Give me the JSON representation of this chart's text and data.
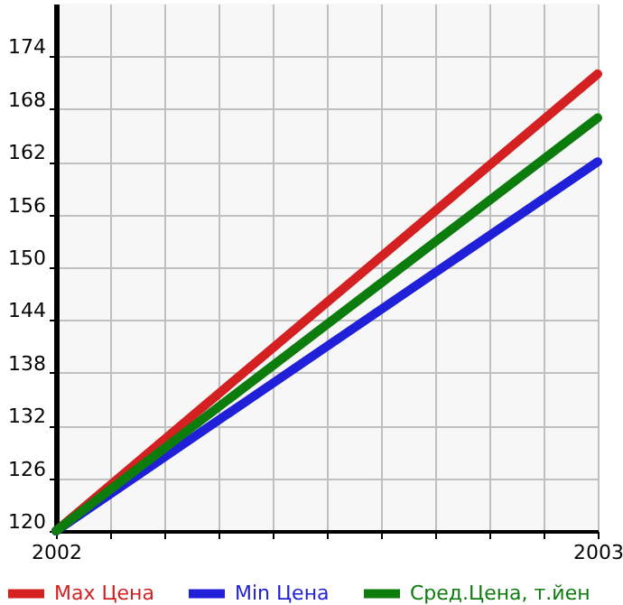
{
  "chart_data": {
    "type": "line",
    "x": [
      2002,
      2003
    ],
    "series": [
      {
        "name": "Max Цена",
        "color": "#d42020",
        "values": [
          120,
          172
        ]
      },
      {
        "name": "Min Цена",
        "color": "#2020d8",
        "values": [
          120,
          162
        ]
      },
      {
        "name": "Сред.Цена, т.йен",
        "color": "#0c7c0c",
        "values": [
          120,
          167
        ]
      }
    ],
    "xlim": [
      2002,
      2003
    ],
    "xticks": [
      2002,
      {
        "value": 2002.1,
        "label": null
      },
      {
        "value": 2002.2,
        "label": null
      },
      {
        "value": 2002.3,
        "label": null
      },
      {
        "value": 2002.4,
        "label": null
      },
      {
        "value": 2002.5,
        "label": null
      },
      {
        "value": 2002.6,
        "label": null
      },
      {
        "value": 2002.7,
        "label": null
      },
      {
        "value": 2002.8,
        "label": null
      },
      {
        "value": 2002.9,
        "label": null
      },
      2003
    ],
    "ylim": [
      120,
      180
    ],
    "yticks": [
      120,
      126,
      132,
      138,
      144,
      150,
      156,
      162,
      168,
      174
    ],
    "grid": true,
    "legend": "bottom",
    "marker": "none",
    "line_style": "solid"
  }
}
